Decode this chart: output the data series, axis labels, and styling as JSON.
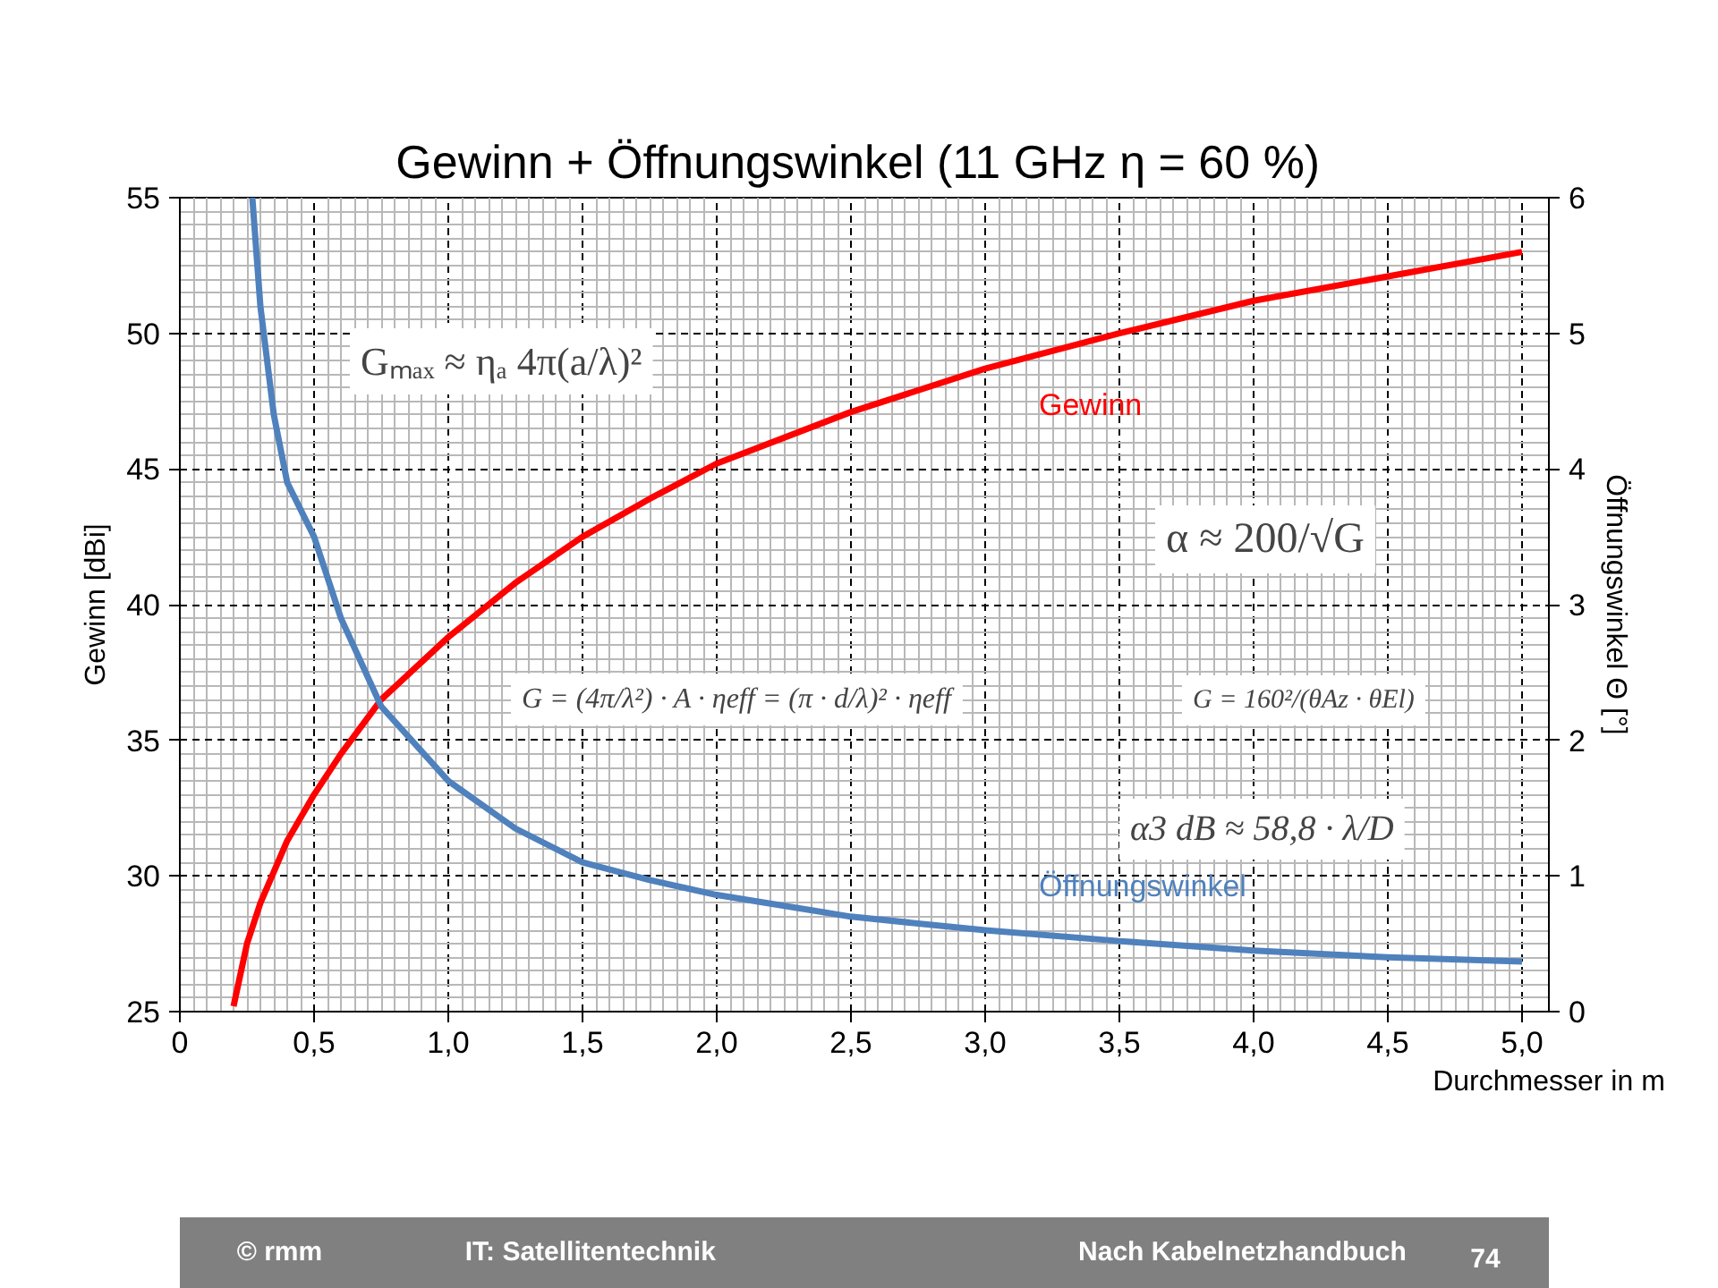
{
  "chart_data": {
    "type": "line",
    "title": "Gewinn + Öffnungswinkel  (11 GHz η = 60 %)",
    "xlabel": "Durchmesser in m",
    "ylabel": "Gewinn [dBi]",
    "y2label": "Öffnungswinkel Θ [°]",
    "xlim": [
      0,
      5.1
    ],
    "ylim": [
      25,
      55
    ],
    "y2lim": [
      0,
      6
    ],
    "xticks": [
      {
        "value": 0,
        "label": "0"
      },
      {
        "value": 0.5,
        "label": "0,5"
      },
      {
        "value": 1,
        "label": "1,0"
      },
      {
        "value": 1.5,
        "label": "1,5"
      },
      {
        "value": 2,
        "label": "2,0"
      },
      {
        "value": 2.5,
        "label": "2,5"
      },
      {
        "value": 3,
        "label": "3,0"
      },
      {
        "value": 3.5,
        "label": "3,5"
      },
      {
        "value": 4,
        "label": "4,0"
      },
      {
        "value": 4.5,
        "label": "4,5"
      },
      {
        "value": 5,
        "label": "5,0"
      }
    ],
    "yticks": [
      25,
      30,
      35,
      40,
      45,
      50,
      55
    ],
    "y2ticks": [
      0,
      1,
      2,
      3,
      4,
      5,
      6
    ],
    "grid": true,
    "line_style": "solid",
    "marker": "none",
    "series": [
      {
        "name": "Gewinn",
        "color": "#ff0000",
        "x": [
          0.2,
          0.25,
          0.3,
          0.4,
          0.5,
          0.6,
          0.75,
          1.0,
          1.25,
          1.5,
          1.75,
          2.0,
          2.5,
          3.0,
          3.5,
          4.0,
          4.5,
          5.0
        ],
        "values": [
          25.2,
          27.5,
          29,
          31.3,
          33,
          34.5,
          36.5,
          38.8,
          40.8,
          42.5,
          43.9,
          45.2,
          47.1,
          48.7,
          50,
          51.2,
          52.1,
          53
        ]
      },
      {
        "name": "Öffnungswinkel",
        "color": "#4f81bd",
        "axis": "y2",
        "x": [
          0.27,
          0.3,
          0.35,
          0.4,
          0.5,
          0.6,
          0.75,
          1.0,
          1.25,
          1.5,
          1.75,
          2.0,
          2.5,
          3.0,
          3.5,
          4.0,
          4.5,
          5.0
        ],
        "values": [
          6,
          5.2,
          4.4,
          3.9,
          3.5,
          2.9,
          2.25,
          1.7,
          1.35,
          1.1,
          0.97,
          0.86,
          0.7,
          0.6,
          0.52,
          0.45,
          0.4,
          0.37
        ]
      }
    ],
    "annotations": [
      "Gₘₐₓ ≈ ηₐ 4π(a/λ)²",
      "α ≈ 200/√G",
      "G = (4π/λ²) · A · ηeff = (π · d/λ)² · ηeff",
      "G = 160²/(θAz · θEl)",
      "α3 dB ≈ 58,8 · λ/D",
      "© rmm",
      "IT: Satellitentechnik",
      "Nach Kabelnetzhandbuch",
      "74"
    ]
  }
}
